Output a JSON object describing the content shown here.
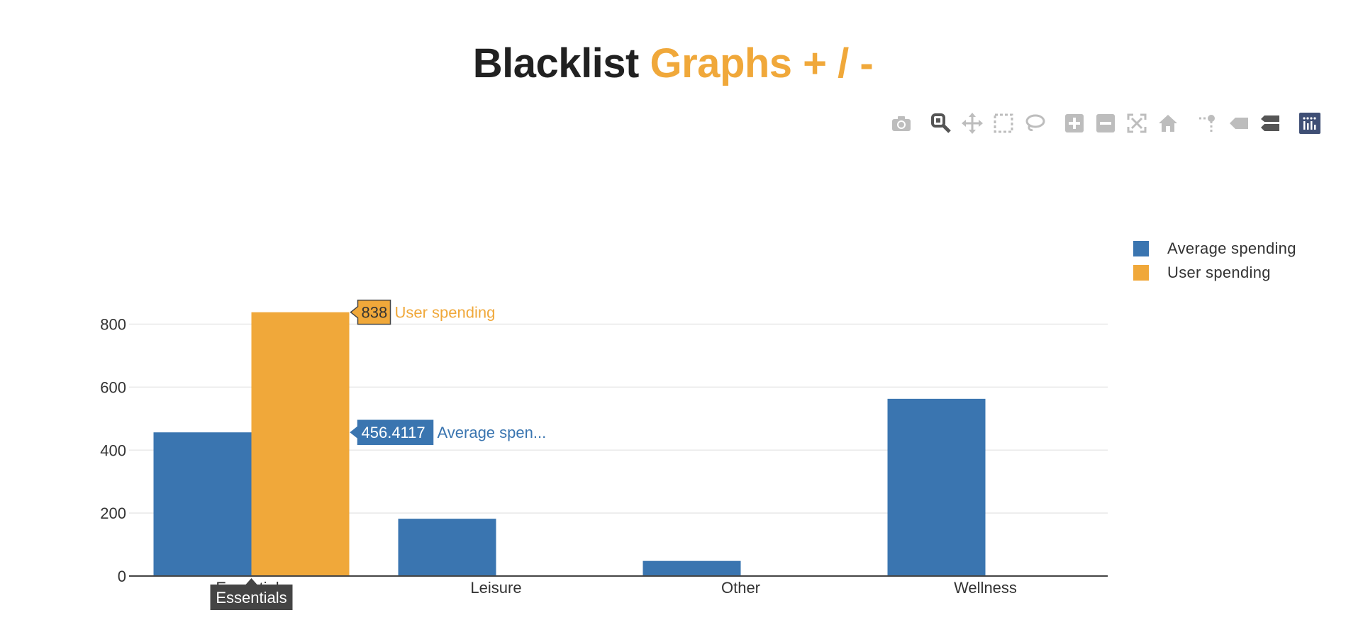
{
  "title": {
    "part1": "Blacklist",
    "part2": "Graphs + / -"
  },
  "colors": {
    "average": "#3a75b0",
    "user": "#f0a83a",
    "title_dark": "#212121",
    "title_accent": "#f0a83a",
    "grid": "#e8e8e8"
  },
  "modebar": [
    "camera-icon",
    "zoom-icon",
    "pan-icon",
    "box-select-icon",
    "lasso-select-icon",
    "zoom-in-icon",
    "zoom-out-icon",
    "autoscale-icon",
    "reset-axes-icon",
    "toggle-spike-lines-icon",
    "show-closest-data-icon",
    "compare-data-icon",
    "plotly-logo-icon"
  ],
  "legend": [
    {
      "label": "Average spending",
      "color": "#3a75b0"
    },
    {
      "label": "User spending",
      "color": "#f0a83a"
    }
  ],
  "chart_data": {
    "type": "bar",
    "categories": [
      "Essentials",
      "Leisure",
      "Other",
      "Wellness"
    ],
    "series": [
      {
        "name": "Average spending",
        "values": [
          456.4117,
          182,
          48,
          563
        ]
      },
      {
        "name": "User spending",
        "values": [
          838,
          0,
          0,
          0
        ]
      }
    ],
    "ylim": [
      0,
      880
    ],
    "yticks": [
      0,
      200,
      400,
      600,
      800
    ],
    "grid": true,
    "legend_position": "top-right",
    "hover": {
      "user_value": "838",
      "user_label": "User spending",
      "avg_value": "456.4117",
      "avg_label": "Average spen...",
      "category": "Essentials"
    }
  }
}
